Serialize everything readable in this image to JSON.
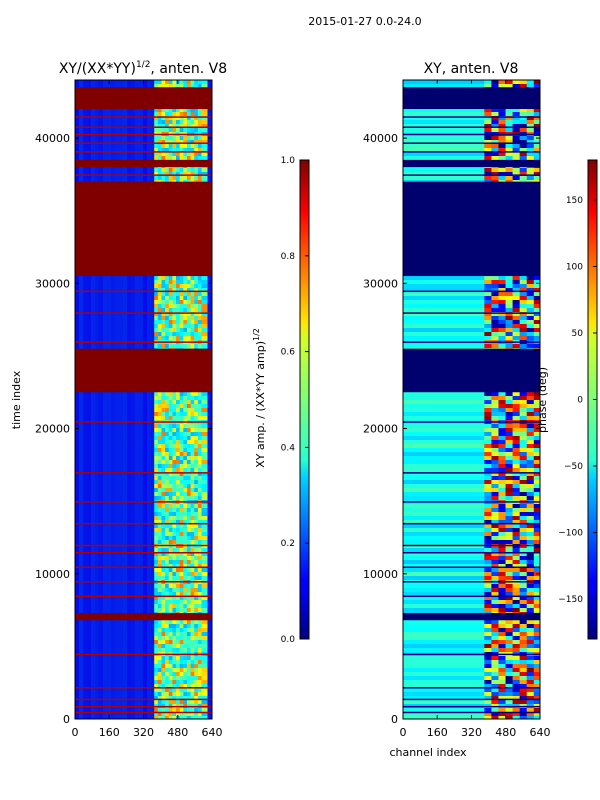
{
  "suptitle": "2015-01-27 0.0-24.0",
  "chart_data": [
    {
      "type": "heatmap",
      "title_base": "XY/(XX*YY)",
      "title_exp": "1/2",
      "title_tail": ", anten. V8",
      "ylabel": "time index",
      "xlabel": "",
      "xlim": [
        0,
        640
      ],
      "ylim": [
        0,
        44000
      ],
      "xticks": [
        0,
        160,
        320,
        480,
        640
      ],
      "yticks": [
        0,
        10000,
        20000,
        30000,
        40000
      ],
      "colorbar": {
        "range": [
          0.0,
          1.0
        ],
        "ticks": [
          0.0,
          0.2,
          0.4,
          0.6,
          0.8,
          1.0
        ],
        "label_base": "XY amp. / (XX*YY amp)",
        "label_exp": "1/2"
      }
    },
    {
      "type": "heatmap",
      "title": "XY, anten. V8",
      "ylabel": "",
      "xlabel": "channel index",
      "xlim": [
        0,
        640
      ],
      "ylim": [
        0,
        44000
      ],
      "xticks": [
        0,
        160,
        320,
        480,
        640
      ],
      "yticks": [
        0,
        10000,
        20000,
        30000,
        40000
      ],
      "colorbar": {
        "range": [
          -180,
          180
        ],
        "ticks": [
          -150,
          -100,
          -50,
          0,
          50,
          100,
          150
        ],
        "label": "phase (deg)"
      }
    }
  ]
}
